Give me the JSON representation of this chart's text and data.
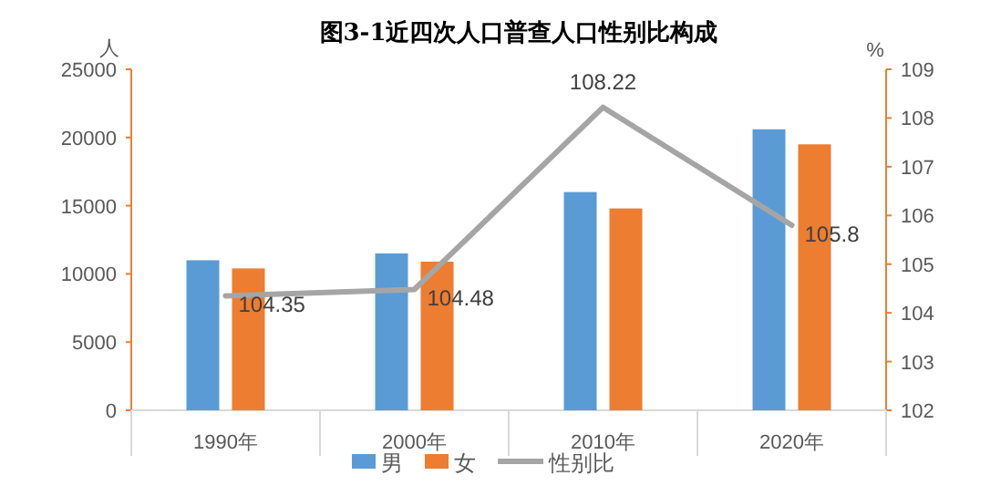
{
  "chart_data": {
    "type": "bar",
    "title": "图3-1近四次人口普查人口性别比构成",
    "ylabel": "人",
    "y2label": "%",
    "categories": [
      "1990年",
      "2000年",
      "2010年",
      "2020年"
    ],
    "series": [
      {
        "name": "男",
        "color": "#5b9bd5",
        "values": [
          11000,
          11500,
          16000,
          20600
        ]
      },
      {
        "name": "女",
        "color": "#ed7d31",
        "values": [
          10400,
          10900,
          14800,
          19500
        ]
      },
      {
        "name": "性别比",
        "type": "line",
        "axis": "y2",
        "color": "#a5a5a5",
        "values": [
          104.35,
          104.48,
          108.22,
          105.8
        ],
        "value_labels": [
          "104.35",
          "104.48",
          "108.22",
          "105.8"
        ]
      }
    ],
    "ylim": [
      0,
      25000
    ],
    "yticks": [
      0,
      5000,
      10000,
      15000,
      20000,
      25000
    ],
    "y2lim": [
      102,
      109
    ],
    "y2ticks": [
      102,
      103,
      104,
      105,
      106,
      107,
      108,
      109
    ],
    "legend": "bottom",
    "grid": false,
    "marker": "none",
    "line_style": "solid"
  }
}
